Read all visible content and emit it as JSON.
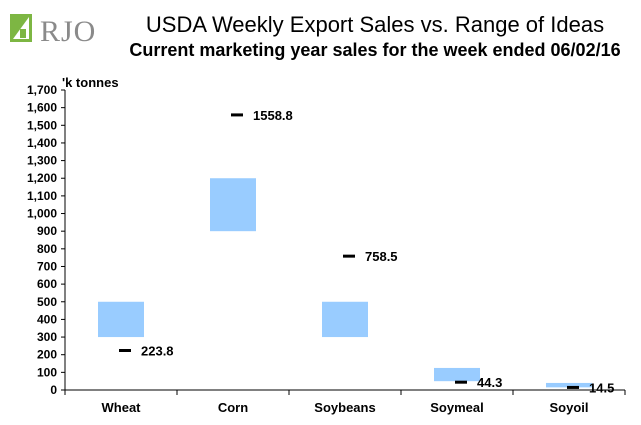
{
  "logo_text": "RJO",
  "colors": {
    "range": "#99CCFF",
    "actual": "#000000",
    "logo_green": "#7DB643"
  },
  "chart_data": {
    "type": "bar",
    "title": "USDA Weekly Export Sales vs. Range of Ideas",
    "subtitle": "Current marketing year sales for the week ended 06/02/16",
    "unit_label": "'k tonnes",
    "categories": [
      "Wheat",
      "Corn",
      "Soybeans",
      "Soymeal",
      "Soyoil"
    ],
    "range_low": [
      300,
      900,
      300,
      50,
      15
    ],
    "range_high": [
      500,
      1200,
      500,
      125,
      40
    ],
    "actual": [
      223.8,
      1558.8,
      758.5,
      44.3,
      14.5
    ],
    "actual_labels": [
      "223.8",
      "1558.8",
      "758.5",
      "44.3",
      "14.5"
    ],
    "ylim": [
      0,
      1700
    ],
    "yticks": [
      0,
      100,
      200,
      300,
      400,
      500,
      600,
      700,
      800,
      900,
      1000,
      1100,
      1200,
      1300,
      1400,
      1500,
      1600,
      1700
    ],
    "ytick_labels": [
      "0",
      "100",
      "200",
      "300",
      "400",
      "500",
      "600",
      "700",
      "800",
      "900",
      "1,000",
      "1,100",
      "1,200",
      "1,300",
      "1,400",
      "1,500",
      "1,600",
      "1,700"
    ],
    "grid": false
  }
}
